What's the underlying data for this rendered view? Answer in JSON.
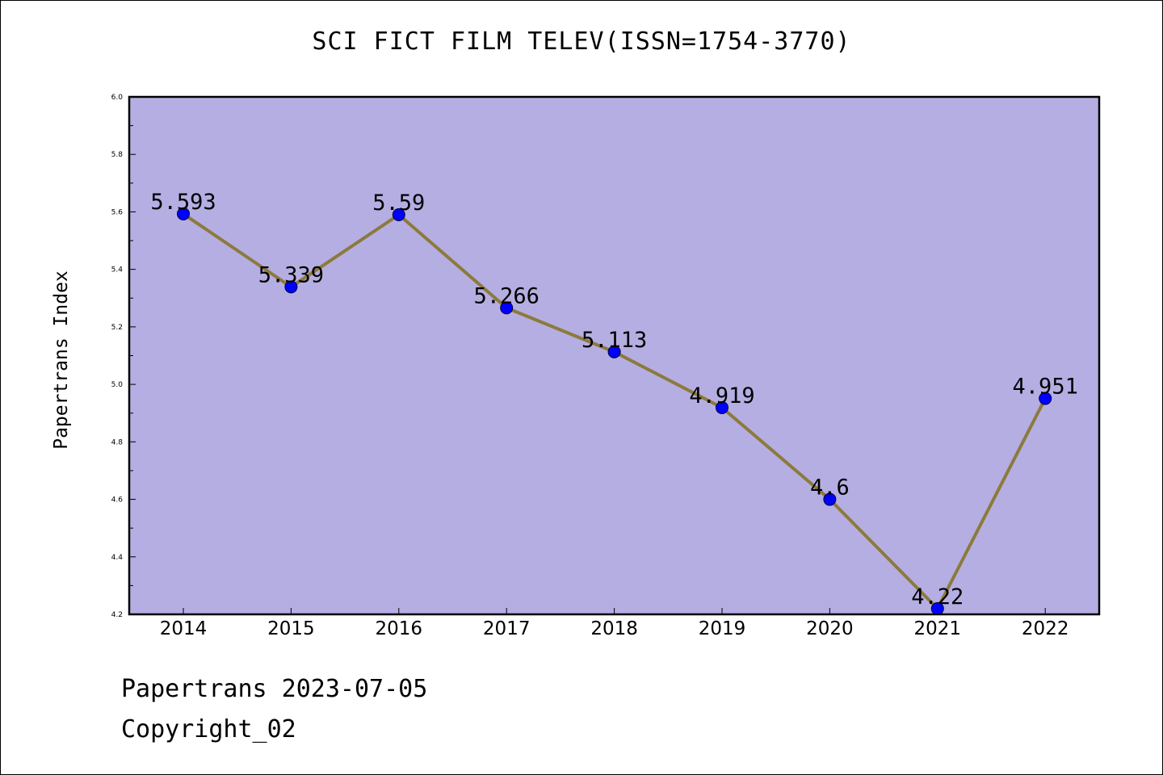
{
  "chart_data": {
    "type": "line",
    "title": "SCI FICT FILM TELEV(ISSN=1754-3770)",
    "ylabel": "Papertrans Index",
    "xlabel": "",
    "categories": [
      "2014",
      "2015",
      "2016",
      "2017",
      "2018",
      "2019",
      "2020",
      "2021",
      "2022"
    ],
    "series": [
      {
        "values": [
          5.593,
          5.339,
          5.59,
          5.266,
          5.113,
          4.919,
          4.6,
          4.22,
          4.951
        ],
        "labels": [
          "5.593",
          "5.339",
          "5.59",
          "5.266",
          "5.113",
          "4.919",
          "4.6",
          "4.22",
          "4.951"
        ]
      }
    ],
    "ylim": [
      4.2,
      6.0
    ],
    "yticks": [
      "4.2",
      "4.4",
      "4.6",
      "4.8",
      "5.0",
      "5.2",
      "5.4",
      "5.6",
      "5.8",
      "6.0"
    ],
    "grid": false,
    "colors": {
      "plot_background": "#b5aee2",
      "line": "#8c7a3c",
      "marker": "#0000ff"
    }
  },
  "footer": {
    "date_line": "Papertrans 2023-07-05",
    "copyright_line": "Copyright_02"
  }
}
